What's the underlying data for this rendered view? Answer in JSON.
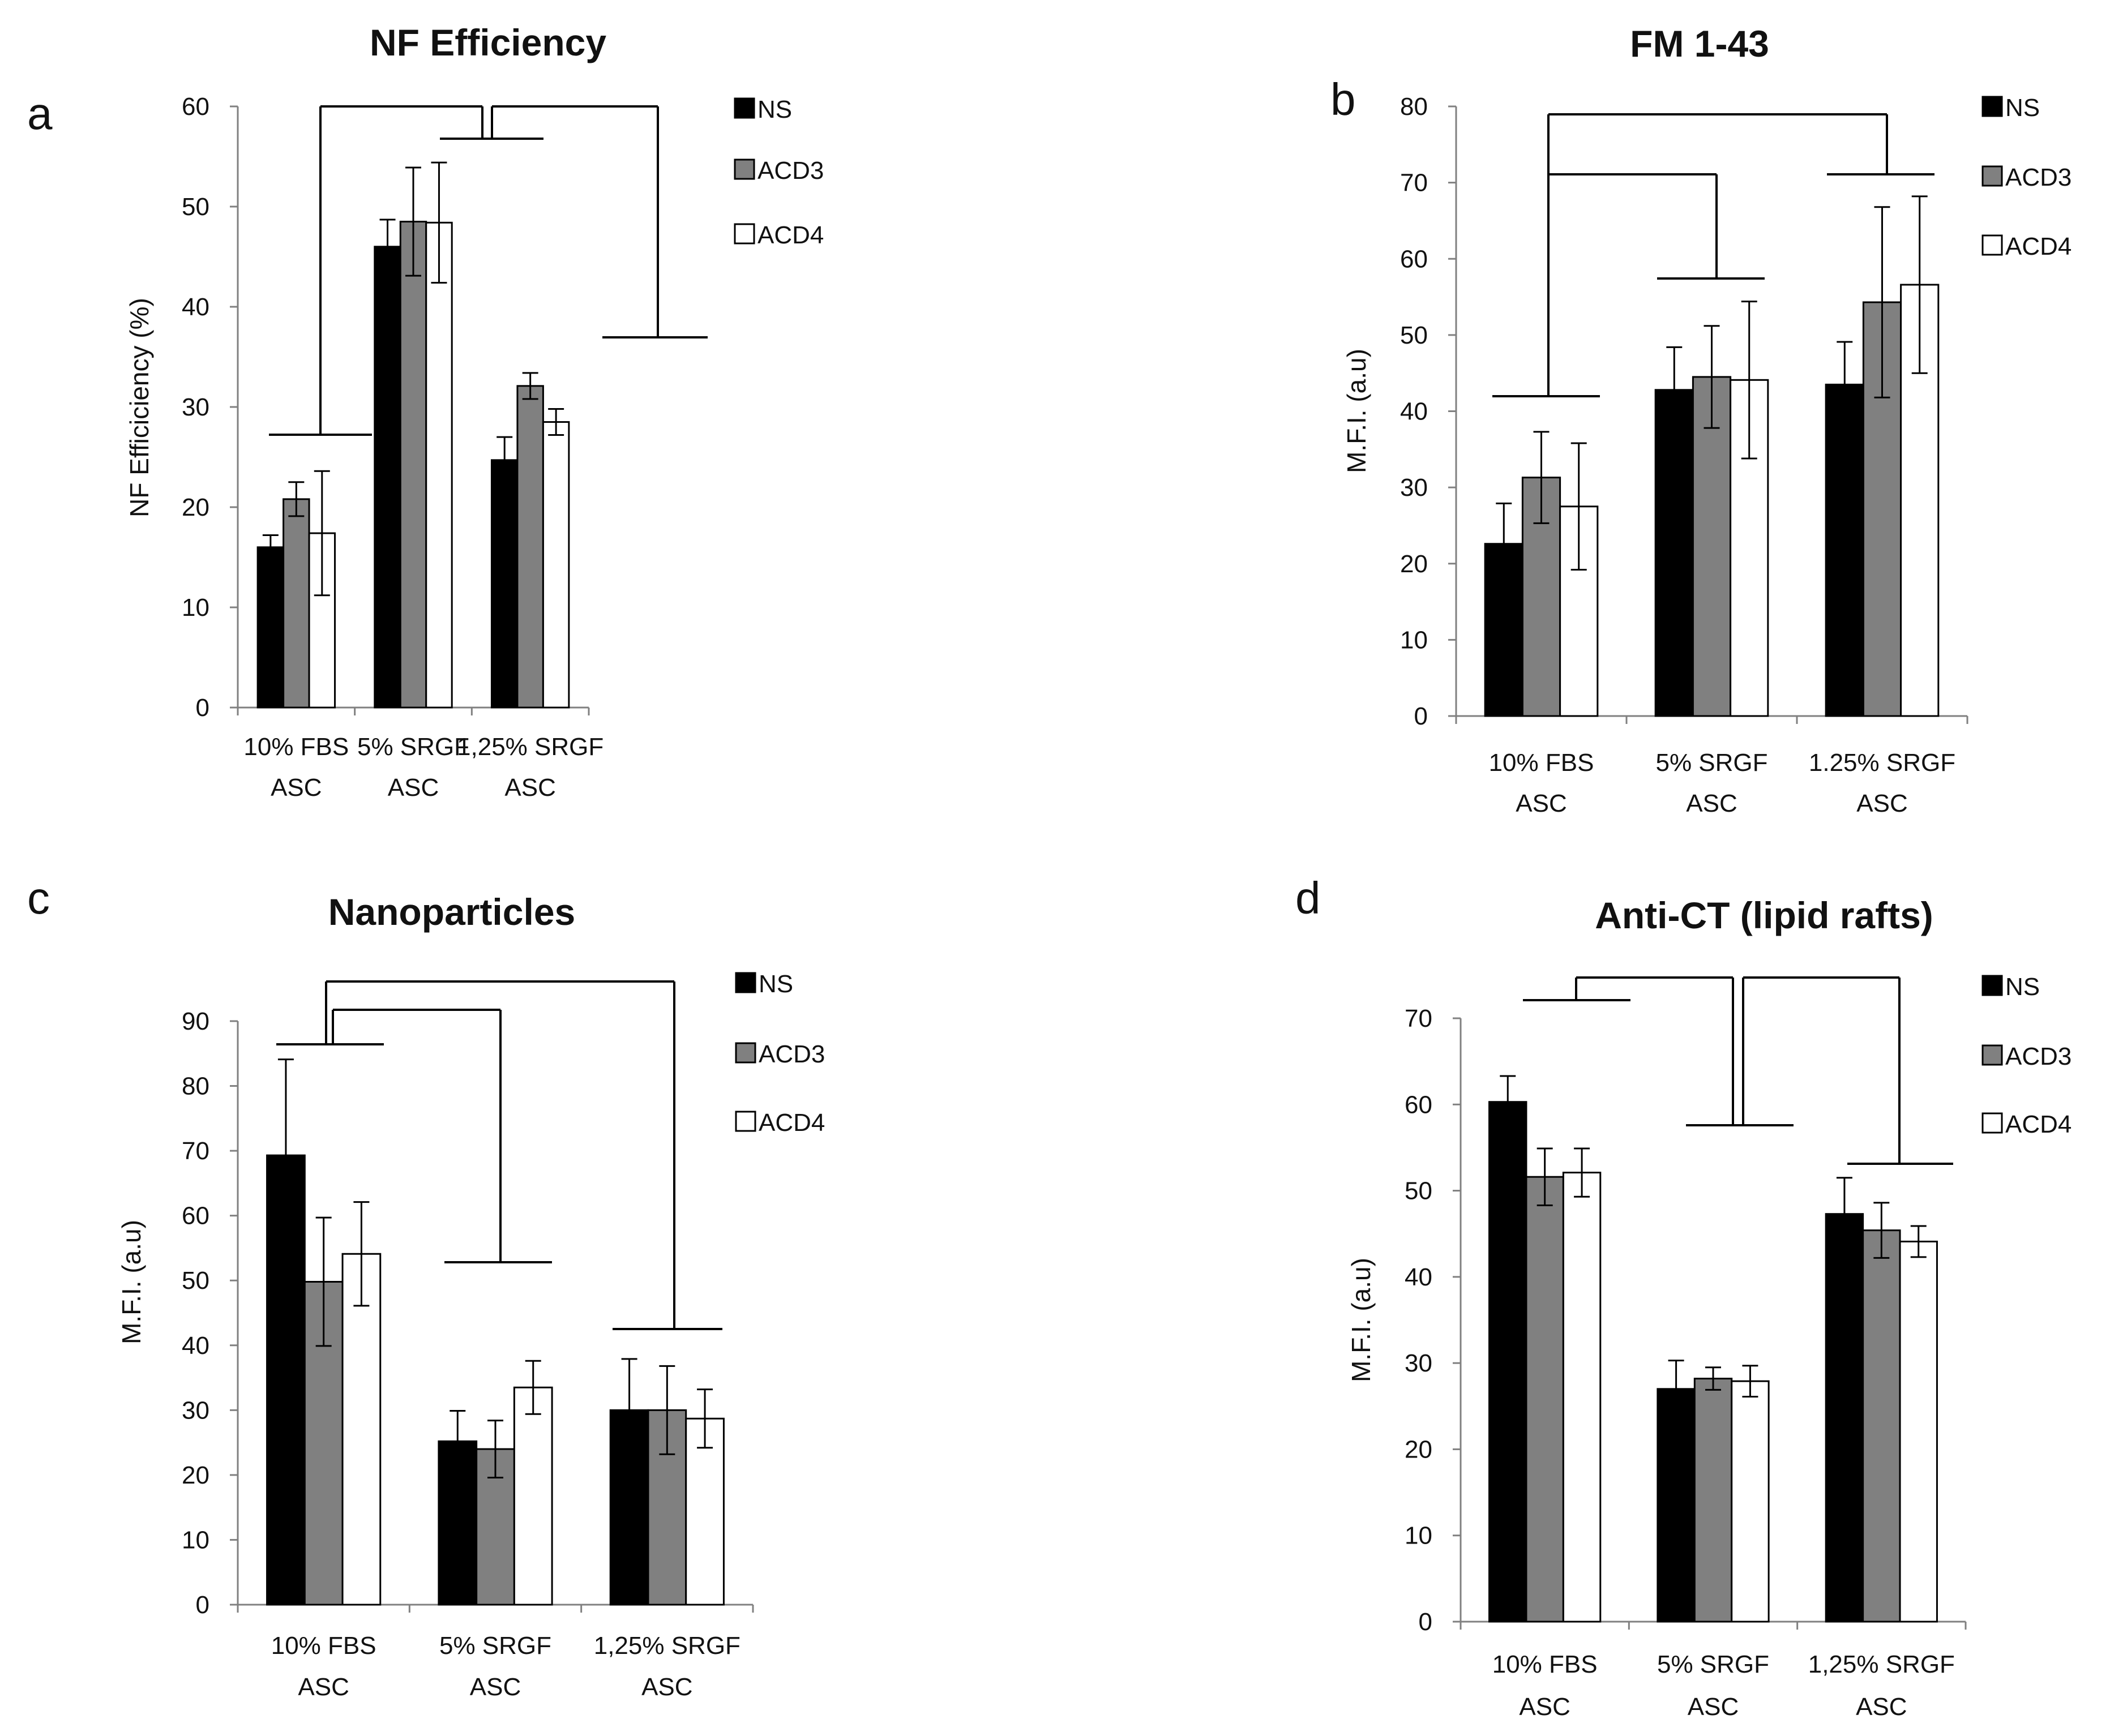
{
  "series_styles": [
    {
      "name": "NS",
      "fill": "#000000"
    },
    {
      "name": "ACD3",
      "fill": "#808080"
    },
    {
      "name": "ACD4",
      "fill": "#ffffff"
    }
  ],
  "chart_data": [
    {
      "panel": "a",
      "type": "bar",
      "title": "NF Efficiency",
      "ylabel": "NF Efficiciency  (%)",
      "xlabel": "",
      "ylim": [
        0,
        60
      ],
      "yticks": [
        0,
        10,
        20,
        30,
        40,
        50,
        60
      ],
      "categories": [
        [
          "10% FBS",
          "ASC"
        ],
        [
          "5% SRGF",
          "ASC"
        ],
        [
          "1,25% SRGF",
          "ASC"
        ]
      ],
      "legend": [
        "NS",
        "ACD3",
        "ACD4"
      ],
      "series": [
        {
          "name": "NS",
          "values": [
            16.0,
            46.0,
            24.7
          ],
          "errors": [
            1.2,
            2.7,
            2.3
          ]
        },
        {
          "name": "ACD3",
          "values": [
            20.8,
            48.5,
            32.1
          ],
          "errors": [
            1.7,
            5.4,
            1.3
          ]
        },
        {
          "name": "ACD4",
          "values": [
            17.4,
            48.4,
            28.5
          ],
          "errors": [
            6.2,
            6.0,
            1.3
          ]
        }
      ]
    },
    {
      "panel": "b",
      "type": "bar",
      "title": "FM 1-43",
      "ylabel": "M.F.I. (a.u)",
      "xlabel": "",
      "ylim": [
        0,
        80
      ],
      "yticks": [
        0,
        10,
        20,
        30,
        40,
        50,
        60,
        70,
        80
      ],
      "categories": [
        [
          "10% FBS",
          "ASC"
        ],
        [
          "5% SRGF",
          "ASC"
        ],
        [
          "1.25% SRGF",
          "ASC"
        ]
      ],
      "legend": [
        "NS",
        "ACD3",
        "ACD4"
      ],
      "series": [
        {
          "name": "NS",
          "values": [
            22.6,
            42.8,
            43.5
          ],
          "errors": [
            5.3,
            5.6,
            5.6
          ]
        },
        {
          "name": "ACD3",
          "values": [
            31.3,
            44.5,
            54.3
          ],
          "errors": [
            6.0,
            6.7,
            12.5
          ]
        },
        {
          "name": "ACD4",
          "values": [
            27.5,
            44.1,
            56.6
          ],
          "errors": [
            8.3,
            10.3,
            11.6
          ]
        }
      ]
    },
    {
      "panel": "c",
      "type": "bar",
      "title": "Nanoparticles",
      "ylabel": "M.F.I. (a.u)",
      "xlabel": "",
      "ylim": [
        0,
        90
      ],
      "yticks": [
        0,
        10,
        20,
        30,
        40,
        50,
        60,
        70,
        80,
        90
      ],
      "categories": [
        [
          "10% FBS",
          "ASC"
        ],
        [
          "5% SRGF",
          "ASC"
        ],
        [
          "1,25% SRGF",
          "ASC"
        ]
      ],
      "legend": [
        "NS",
        "ACD3",
        "ACD4"
      ],
      "series": [
        {
          "name": "NS",
          "values": [
            69.3,
            25.2,
            30.0
          ],
          "errors": [
            14.8,
            4.7,
            7.9
          ]
        },
        {
          "name": "ACD3",
          "values": [
            49.8,
            24.0,
            30.0
          ],
          "errors": [
            9.9,
            4.4,
            6.8
          ]
        },
        {
          "name": "ACD4",
          "values": [
            54.1,
            33.5,
            28.7
          ],
          "errors": [
            8.0,
            4.1,
            4.5
          ]
        }
      ]
    },
    {
      "panel": "d",
      "type": "bar",
      "title": "Anti-CT (lipid rafts)",
      "ylabel": "M.F.I. (a.u)",
      "xlabel": "",
      "ylim": [
        0,
        70
      ],
      "yticks": [
        0,
        10,
        20,
        30,
        40,
        50,
        60,
        70
      ],
      "categories": [
        [
          "10% FBS",
          "ASC"
        ],
        [
          "5% SRGF",
          "ASC"
        ],
        [
          "1,25% SRGF",
          "ASC"
        ]
      ],
      "legend": [
        "NS",
        "ACD3",
        "ACD4"
      ],
      "series": [
        {
          "name": "NS",
          "values": [
            60.3,
            27.0,
            47.3
          ],
          "errors": [
            3.0,
            3.3,
            4.2
          ]
        },
        {
          "name": "ACD3",
          "values": [
            51.6,
            28.2,
            45.4
          ],
          "errors": [
            3.3,
            1.3,
            3.2
          ]
        },
        {
          "name": "ACD4",
          "values": [
            52.1,
            27.9,
            44.1
          ],
          "errors": [
            2.8,
            1.8,
            1.8
          ]
        }
      ]
    }
  ]
}
